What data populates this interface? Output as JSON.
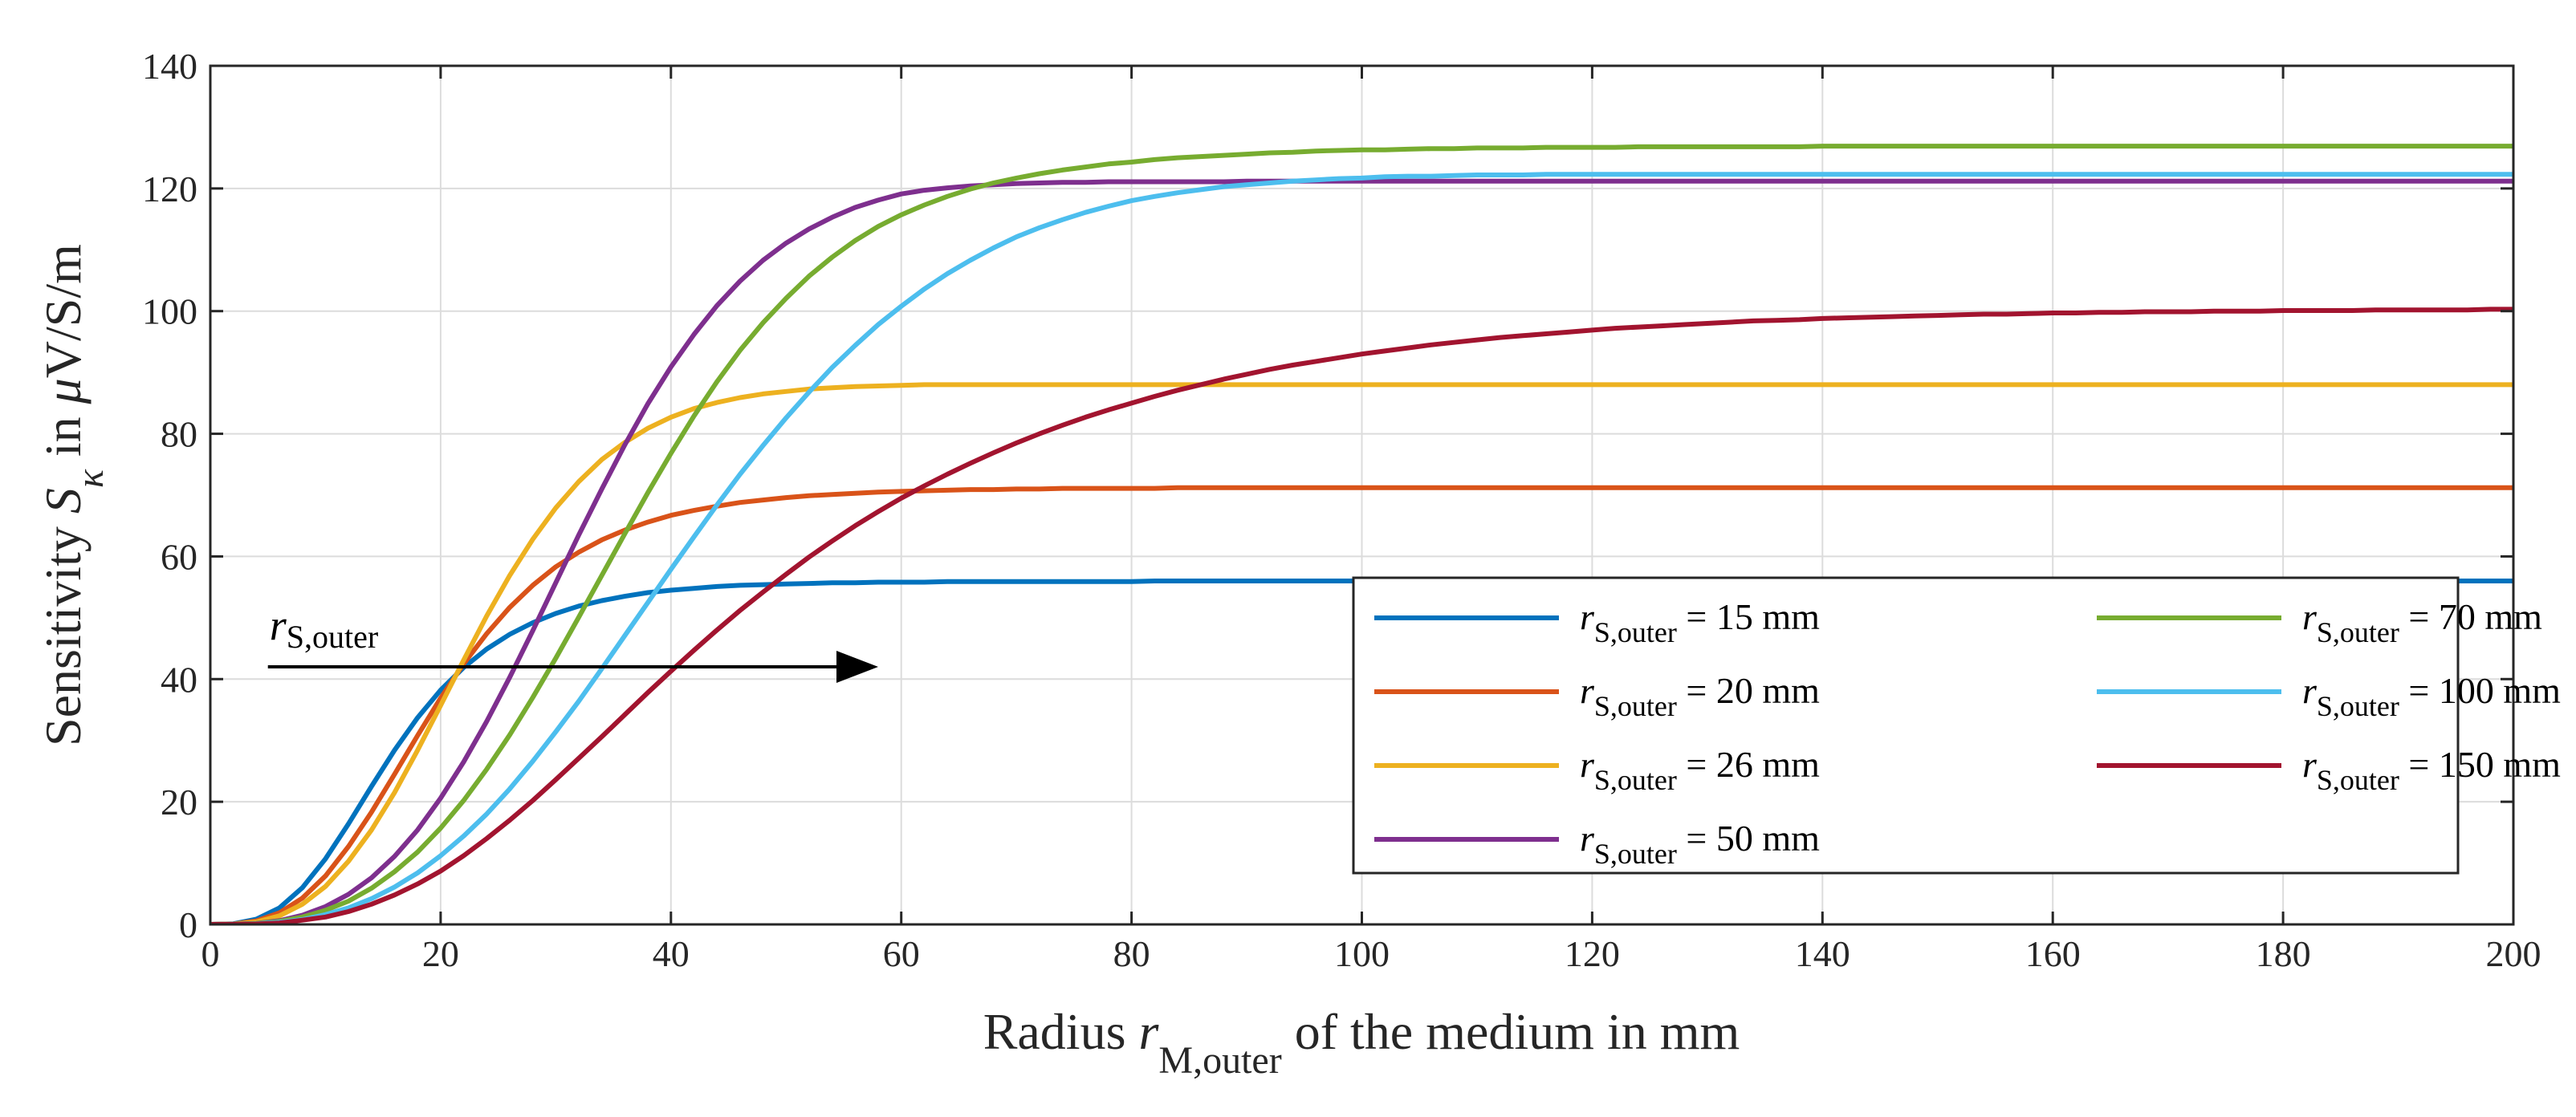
{
  "chart_data": {
    "type": "line",
    "title": "",
    "xlabel": {
      "prefix": "Radius ",
      "symbol": "r",
      "subscript": "M,outer",
      "suffix": " of the medium in mm"
    },
    "ylabel": {
      "prefix": "Sensitivity ",
      "symbol": "S",
      "subscript": "κ",
      "suffix": " in ",
      "mu": "μ",
      "unit": "V/S/m"
    },
    "xlim": [
      0,
      200
    ],
    "ylim": [
      0,
      140
    ],
    "xticks": [
      0,
      20,
      40,
      60,
      80,
      100,
      120,
      140,
      160,
      180,
      200
    ],
    "yticks": [
      0,
      20,
      40,
      60,
      80,
      100,
      120,
      140
    ],
    "grid": true,
    "legend_position": "inside lower-right, two columns",
    "annotation": {
      "symbol": "r",
      "subscript": "S,outer",
      "arrow_from": [
        5,
        42
      ],
      "arrow_to": [
        58,
        42
      ]
    },
    "x": [
      0,
      2,
      4,
      6,
      8,
      10,
      12,
      14,
      16,
      18,
      20,
      22,
      24,
      26,
      28,
      30,
      32,
      34,
      36,
      38,
      40,
      42,
      44,
      46,
      48,
      50,
      52,
      54,
      56,
      58,
      60,
      62,
      64,
      66,
      68,
      70,
      72,
      74,
      76,
      78,
      80,
      82,
      84,
      86,
      88,
      90,
      92,
      94,
      96,
      98,
      100,
      102,
      104,
      106,
      108,
      110,
      112,
      114,
      116,
      118,
      120,
      122,
      124,
      126,
      128,
      130,
      132,
      134,
      136,
      138,
      140,
      142,
      144,
      146,
      148,
      150,
      152,
      154,
      156,
      158,
      160,
      162,
      164,
      166,
      168,
      170,
      172,
      174,
      176,
      178,
      180,
      182,
      184,
      186,
      188,
      190,
      192,
      194,
      196,
      198,
      200
    ],
    "series": [
      {
        "name": "r S,outer = 15 mm",
        "symbol": "r",
        "subscript": "S,outer",
        "value_text": " = 15 mm",
        "color": "#0072BD",
        "values": [
          0,
          0.11,
          0.85,
          2.7,
          6.0,
          10.7,
          16.4,
          22.5,
          28.4,
          33.7,
          38.2,
          41.9,
          44.9,
          47.3,
          49.2,
          50.7,
          51.9,
          52.8,
          53.5,
          54.1,
          54.5,
          54.8,
          55.1,
          55.3,
          55.4,
          55.5,
          55.6,
          55.7,
          55.7,
          55.8,
          55.8,
          55.8,
          55.9,
          55.9,
          55.9,
          55.9,
          55.9,
          55.9,
          55.9,
          55.9,
          55.9,
          56.0,
          56.0,
          56.0,
          56.0,
          56.0,
          56.0,
          56.0,
          56.0,
          56.0,
          56.0,
          56.0,
          56.0,
          56.0,
          56.0,
          56.0,
          56.0,
          56.0,
          56.0,
          56.0,
          56.0,
          56.0,
          56.0,
          56.0,
          56.0,
          56.0,
          56.0,
          56.0,
          56.0,
          56.0,
          56.0,
          56.0,
          56.0,
          56.0,
          56.0,
          56.0,
          56.0,
          56.0,
          56.0,
          56.0,
          56.0,
          56.0,
          56.0,
          56.0,
          56.0,
          56.0,
          56.0,
          56.0,
          56.0,
          56.0,
          56.0,
          56.0,
          56.0,
          56.0,
          56.0,
          56.0,
          56.0,
          56.0,
          56.0,
          56.0,
          56.0
        ]
      },
      {
        "name": "r S,outer = 20 mm",
        "symbol": "r",
        "subscript": "S,outer",
        "value_text": " = 20 mm",
        "color": "#D95319",
        "values": [
          0,
          0.07,
          0.57,
          1.9,
          4.3,
          7.9,
          12.7,
          18.3,
          24.5,
          30.8,
          36.9,
          42.5,
          47.4,
          51.7,
          55.3,
          58.3,
          60.7,
          62.7,
          64.3,
          65.6,
          66.7,
          67.5,
          68.2,
          68.8,
          69.2,
          69.6,
          69.9,
          70.1,
          70.3,
          70.5,
          70.6,
          70.7,
          70.8,
          70.9,
          70.9,
          71.0,
          71.0,
          71.1,
          71.1,
          71.1,
          71.1,
          71.1,
          71.2,
          71.2,
          71.2,
          71.2,
          71.2,
          71.2,
          71.2,
          71.2,
          71.2,
          71.2,
          71.2,
          71.2,
          71.2,
          71.2,
          71.2,
          71.2,
          71.2,
          71.2,
          71.2,
          71.2,
          71.2,
          71.2,
          71.2,
          71.2,
          71.2,
          71.2,
          71.2,
          71.2,
          71.2,
          71.2,
          71.2,
          71.2,
          71.2,
          71.2,
          71.2,
          71.2,
          71.2,
          71.2,
          71.2,
          71.2,
          71.2,
          71.2,
          71.2,
          71.2,
          71.2,
          71.2,
          71.2,
          71.2,
          71.2,
          71.2,
          71.2,
          71.2,
          71.2,
          71.2,
          71.2,
          71.2,
          71.2,
          71.2,
          71.2
        ]
      },
      {
        "name": "r S,outer = 26 mm",
        "symbol": "r",
        "subscript": "S,outer",
        "value_text": " = 26 mm",
        "color": "#EDB120",
        "values": [
          0,
          0.05,
          0.4,
          1.4,
          3.3,
          6.2,
          10.3,
          15.4,
          21.5,
          28.4,
          35.7,
          43.1,
          50.3,
          56.9,
          62.8,
          67.9,
          72.2,
          75.8,
          78.6,
          80.9,
          82.7,
          84.1,
          85.1,
          85.9,
          86.5,
          86.9,
          87.3,
          87.5,
          87.7,
          87.8,
          87.9,
          88.0,
          88.0,
          88.0,
          88.0,
          88.0,
          88.0,
          88.0,
          88.0,
          88.0,
          88.0,
          88.0,
          88.0,
          88.0,
          88.0,
          88.0,
          88.0,
          88.0,
          88.0,
          88.0,
          88.0,
          88.0,
          88.0,
          88.0,
          88.0,
          88.0,
          88.0,
          88.0,
          88.0,
          88.0,
          88.0,
          88.0,
          88.0,
          88.0,
          88.0,
          88.0,
          88.0,
          88.0,
          88.0,
          88.0,
          88.0,
          88.0,
          88.0,
          88.0,
          88.0,
          88.0,
          88.0,
          88.0,
          88.0,
          88.0,
          88.0,
          88.0,
          88.0,
          88.0,
          88.0,
          88.0,
          88.0,
          88.0,
          88.0,
          88.0,
          88.0,
          88.0,
          88.0,
          88.0,
          88.0,
          88.0,
          88.0,
          88.0,
          88.0,
          88.0,
          88.0
        ]
      },
      {
        "name": "r S,outer = 50 mm",
        "symbol": "r",
        "subscript": "S,outer",
        "value_text": " = 50 mm",
        "color": "#7E2F8E",
        "values": [
          0,
          0.02,
          0.17,
          0.6,
          1.5,
          2.9,
          4.9,
          7.6,
          11.1,
          15.4,
          20.6,
          26.5,
          33.1,
          40.3,
          47.9,
          55.7,
          63.5,
          71.0,
          78.2,
          84.9,
          90.9,
          96.2,
          100.9,
          104.9,
          108.3,
          111.1,
          113.4,
          115.3,
          116.9,
          118.1,
          119.1,
          119.7,
          120.1,
          120.4,
          120.6,
          120.8,
          120.9,
          121.0,
          121.0,
          121.1,
          121.1,
          121.1,
          121.1,
          121.1,
          121.1,
          121.2,
          121.2,
          121.2,
          121.2,
          121.2,
          121.2,
          121.2,
          121.2,
          121.2,
          121.2,
          121.2,
          121.2,
          121.2,
          121.2,
          121.2,
          121.2,
          121.2,
          121.2,
          121.2,
          121.2,
          121.2,
          121.2,
          121.2,
          121.2,
          121.2,
          121.2,
          121.2,
          121.2,
          121.2,
          121.2,
          121.2,
          121.2,
          121.2,
          121.2,
          121.2,
          121.2,
          121.2,
          121.2,
          121.2,
          121.2,
          121.2,
          121.2,
          121.2,
          121.2,
          121.2,
          121.2,
          121.2,
          121.2,
          121.2,
          121.2,
          121.2,
          121.2,
          121.2,
          121.2,
          121.2,
          121.2
        ]
      },
      {
        "name": "r S,outer = 70 mm",
        "symbol": "r",
        "subscript": "S,outer",
        "value_text": " = 70 mm",
        "color": "#77AC30",
        "values": [
          0,
          0.02,
          0.14,
          0.5,
          1.2,
          2.3,
          3.8,
          5.9,
          8.6,
          11.8,
          15.7,
          20.2,
          25.3,
          30.9,
          37.0,
          43.4,
          50.1,
          56.9,
          63.7,
          70.4,
          76.8,
          82.9,
          88.5,
          93.6,
          98.1,
          102.1,
          105.7,
          108.8,
          111.5,
          113.8,
          115.7,
          117.3,
          118.7,
          119.9,
          120.9,
          121.7,
          122.4,
          123.0,
          123.5,
          124.0,
          124.3,
          124.7,
          125.0,
          125.2,
          125.4,
          125.6,
          125.8,
          125.9,
          126.1,
          126.2,
          126.3,
          126.3,
          126.4,
          126.5,
          126.5,
          126.6,
          126.6,
          126.6,
          126.7,
          126.7,
          126.7,
          126.7,
          126.8,
          126.8,
          126.8,
          126.8,
          126.8,
          126.8,
          126.8,
          126.8,
          126.9,
          126.9,
          126.9,
          126.9,
          126.9,
          126.9,
          126.9,
          126.9,
          126.9,
          126.9,
          126.9,
          126.9,
          126.9,
          126.9,
          126.9,
          126.9,
          126.9,
          126.9,
          126.9,
          126.9,
          126.9,
          126.9,
          126.9,
          126.9,
          126.9,
          126.9,
          126.9,
          126.9,
          126.9,
          126.9,
          126.9
        ]
      },
      {
        "name": "r S,outer = 100 mm",
        "symbol": "r",
        "subscript": "S,outer",
        "value_text": " = 100 mm",
        "color": "#4DBEEE",
        "values": [
          0,
          0.01,
          0.1,
          0.35,
          0.8,
          1.6,
          2.7,
          4.2,
          6.1,
          8.4,
          11.2,
          14.4,
          18.0,
          22.1,
          26.6,
          31.4,
          36.4,
          41.7,
          47.1,
          52.5,
          57.9,
          63.2,
          68.4,
          73.4,
          78.1,
          82.6,
          86.8,
          90.8,
          94.4,
          97.8,
          100.8,
          103.6,
          106.1,
          108.3,
          110.3,
          112.1,
          113.6,
          114.9,
          116.1,
          117.1,
          118.0,
          118.7,
          119.3,
          119.8,
          120.3,
          120.6,
          120.9,
          121.2,
          121.4,
          121.6,
          121.7,
          121.9,
          122.0,
          122.0,
          122.1,
          122.2,
          122.2,
          122.2,
          122.3,
          122.3,
          122.3,
          122.3,
          122.3,
          122.3,
          122.3,
          122.3,
          122.3,
          122.3,
          122.3,
          122.3,
          122.3,
          122.3,
          122.3,
          122.3,
          122.3,
          122.3,
          122.3,
          122.3,
          122.3,
          122.3,
          122.3,
          122.3,
          122.3,
          122.3,
          122.3,
          122.3,
          122.3,
          122.3,
          122.3,
          122.3,
          122.3,
          122.3,
          122.3,
          122.3,
          122.3,
          122.3,
          122.3,
          122.3,
          122.3,
          122.3,
          122.3
        ]
      },
      {
        "name": "r S,outer = 150 mm",
        "symbol": "r",
        "subscript": "S,outer",
        "value_text": " = 150 mm",
        "color": "#A2142F",
        "values": [
          0,
          0.01,
          0.06,
          0.24,
          0.7,
          1.2,
          2.1,
          3.3,
          4.8,
          6.6,
          8.7,
          11.2,
          14.0,
          17.0,
          20.2,
          23.6,
          27.1,
          30.6,
          34.2,
          37.8,
          41.3,
          44.7,
          48.0,
          51.2,
          54.2,
          57.1,
          59.9,
          62.5,
          65.0,
          67.3,
          69.5,
          71.5,
          73.4,
          75.2,
          76.9,
          78.5,
          80.0,
          81.4,
          82.7,
          83.9,
          85.0,
          86.1,
          87.1,
          88.0,
          88.9,
          89.7,
          90.5,
          91.2,
          91.8,
          92.4,
          93.0,
          93.5,
          94.0,
          94.5,
          94.9,
          95.3,
          95.7,
          96.0,
          96.3,
          96.6,
          96.9,
          97.2,
          97.4,
          97.6,
          97.8,
          98.0,
          98.2,
          98.4,
          98.5,
          98.6,
          98.8,
          98.9,
          99.0,
          99.1,
          99.2,
          99.3,
          99.4,
          99.5,
          99.5,
          99.6,
          99.7,
          99.7,
          99.8,
          99.8,
          99.9,
          99.9,
          99.9,
          100.0,
          100.0,
          100.0,
          100.1,
          100.1,
          100.1,
          100.1,
          100.2,
          100.2,
          100.2,
          100.2,
          100.2,
          100.3,
          100.3
        ]
      }
    ]
  }
}
